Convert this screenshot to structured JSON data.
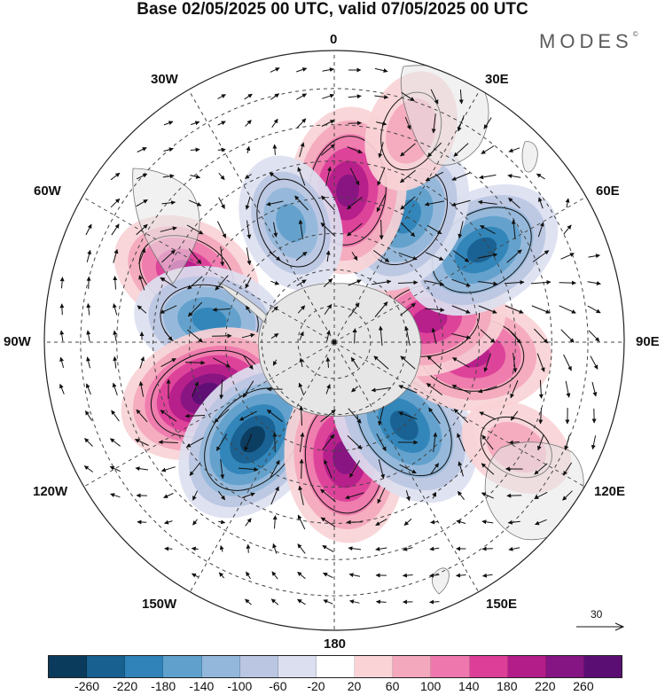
{
  "title": "Base 02/05/2025 00 UTC, valid 07/05/2025 00 UTC",
  "brand": "MODES",
  "brand_mark": "©",
  "longitude_labels": {
    "top": "0",
    "e30": "30E",
    "e60": "60E",
    "e90": "90E",
    "e120": "120E",
    "e150": "150E",
    "bottom": "180",
    "w150": "150W",
    "w120": "120W",
    "w90": "90W",
    "w60": "60W",
    "w30": "30W"
  },
  "reference_vector": {
    "value": "30"
  },
  "colorbar": {
    "colors": [
      "#0b3b5c",
      "#17608f",
      "#2f83b8",
      "#5fa0cc",
      "#93b7da",
      "#bac6e2",
      "#dcdff0",
      "#ffffff",
      "#f9d3d6",
      "#f4a8bd",
      "#ee78ad",
      "#dc3e98",
      "#b31d8a",
      "#841582",
      "#5a0e73"
    ],
    "ticks": [
      "-260",
      "-220",
      "-180",
      "-140",
      "-100",
      "-60",
      "-20",
      "20",
      "60",
      "100",
      "140",
      "180",
      "220",
      "260"
    ]
  },
  "map_data": {
    "projection": "south-polar-stereographic",
    "variable_units_note": "",
    "anomalies": [
      {
        "lon": -65,
        "lat": -45,
        "value": 170
      },
      {
        "lon": -80,
        "lat": -55,
        "value": -170
      },
      {
        "lon": -112,
        "lat": -52,
        "value": 250
      },
      {
        "lon": -140,
        "lat": -55,
        "value": -250
      },
      {
        "lon": 175,
        "lat": -58,
        "value": 230
      },
      {
        "lon": 140,
        "lat": -60,
        "value": -240
      },
      {
        "lon": 95,
        "lat": -52,
        "value": 200
      },
      {
        "lon": 77,
        "lat": -63,
        "value": 180
      },
      {
        "lon": 58,
        "lat": -42,
        "value": -210
      },
      {
        "lon": 30,
        "lat": -50,
        "value": -190
      },
      {
        "lon": 5,
        "lat": -48,
        "value": 220
      },
      {
        "lon": -20,
        "lat": -55,
        "value": -130
      },
      {
        "lon": 120,
        "lat": -32,
        "value": 60
      },
      {
        "lon": 20,
        "lat": -28,
        "value": 80
      }
    ]
  }
}
